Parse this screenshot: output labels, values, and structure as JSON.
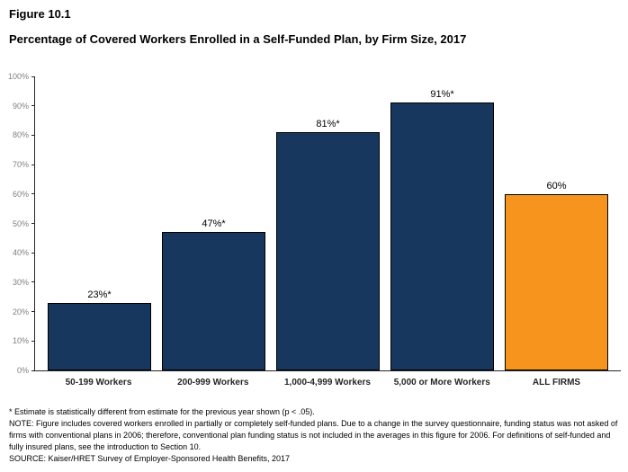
{
  "header": {
    "figure_number": "Figure 10.1",
    "title": "Percentage of Covered Workers Enrolled in a Self-Funded Plan, by Firm Size, 2017"
  },
  "chart_data": {
    "type": "bar",
    "title": "Percentage of Covered Workers Enrolled in a Self-Funded Plan, by Firm Size, 2017",
    "categories": [
      "50-199 Workers",
      "200-999 Workers",
      "1,000-4,999 Workers",
      "5,000 or More Workers",
      "ALL FIRMS"
    ],
    "values": [
      23,
      47,
      81,
      91,
      60
    ],
    "data_labels": [
      "23%*",
      "47%*",
      "81%*",
      "91%*",
      "60%"
    ],
    "bar_colors": [
      "#17375E",
      "#17375E",
      "#17375E",
      "#17375E",
      "#F7941E"
    ],
    "xlabel": "",
    "ylabel": "",
    "ylim": [
      0,
      100
    ],
    "ytick_interval": 10,
    "ytick_labels": [
      "0%",
      "10%",
      "20%",
      "30%",
      "40%",
      "50%",
      "60%",
      "70%",
      "80%",
      "90%",
      "100%"
    ],
    "grid": false,
    "legend": "none"
  },
  "colors": {
    "bar_primary": "#17375E",
    "bar_accent": "#F7941E"
  },
  "footnotes": {
    "estimate_note": "* Estimate is statistically different from estimate for the previous year shown (p < .05).",
    "note": "NOTE: Figure includes covered workers enrolled in partially or completely self-funded plans. Due to a change in the survey questionnaire, funding status was not asked of firms with conventional plans in 2006; therefore, conventional plan funding status is not included in the averages in this figure for 2006. For definitions of self-funded and fully insured plans, see the introduction to Section 10.",
    "source": "SOURCE: Kaiser/HRET Survey of Employer-Sponsored Health Benefits, 2017"
  }
}
